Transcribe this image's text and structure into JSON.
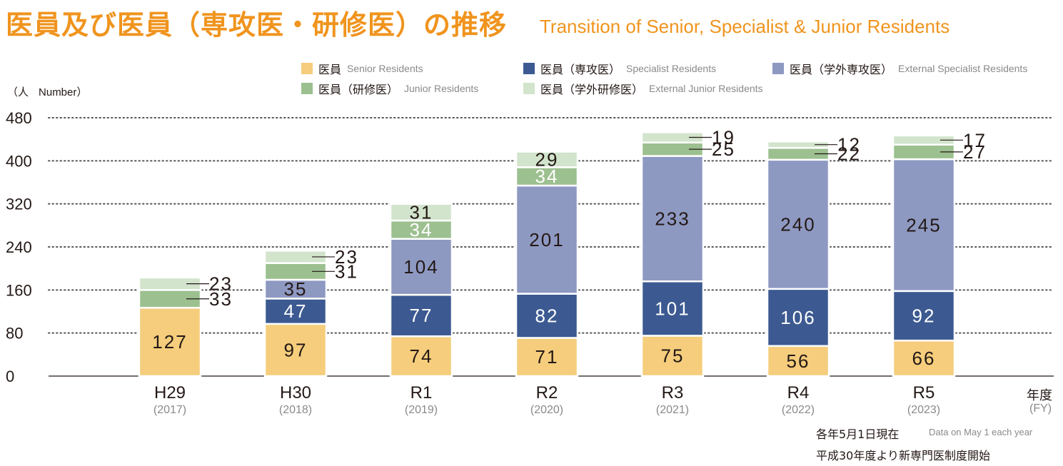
{
  "title": {
    "jp": "医員及び医員（専攻医・研修医）の推移",
    "en": "Transition of Senior, Specialist & Junior Residents"
  },
  "legend": [
    {
      "jp": "医員",
      "en": "Senior Residents",
      "color": "#f5cd7c"
    },
    {
      "jp": "医員（専攻医）",
      "en": "Specialist Residents",
      "color": "#3c5a91"
    },
    {
      "jp": "医員（学外専攻医）",
      "en": "External Specialist Residents",
      "color": "#8e99c2"
    },
    {
      "jp": "医員（研修医）",
      "en": "Junior Residents",
      "color": "#9cc08f"
    },
    {
      "jp": "医員（学外研修医）",
      "en": "External Junior Residents",
      "color": "#d2e4cc"
    }
  ],
  "unit": {
    "jp": "（人",
    "en": "Number）"
  },
  "fy_label": {
    "jp": "年度",
    "en": "(FY)"
  },
  "notes": {
    "line1_jp": "各年5月1日現在",
    "line1_en": "Data on May 1 each year",
    "line2_jp": "平成30年度より新専門医制度開始"
  },
  "chart_data": {
    "type": "bar",
    "stacked": true,
    "categories": [
      "H29",
      "H30",
      "R1",
      "R2",
      "R3",
      "R4",
      "R5"
    ],
    "category_years": [
      "(2017)",
      "(2018)",
      "(2019)",
      "(2020)",
      "(2021)",
      "(2022)",
      "(2023)"
    ],
    "ylim": [
      0,
      480
    ],
    "yticks": [
      0,
      80,
      160,
      240,
      320,
      400,
      480
    ],
    "grid": true,
    "series": [
      {
        "name": "医員",
        "values": [
          127,
          97,
          74,
          71,
          75,
          56,
          66
        ]
      },
      {
        "name": "医員（専攻医）",
        "values": [
          0,
          47,
          77,
          82,
          101,
          106,
          92
        ]
      },
      {
        "name": "医員（学外専攻医）",
        "values": [
          0,
          35,
          104,
          201,
          233,
          240,
          245
        ]
      },
      {
        "name": "医員（研修医）",
        "values": [
          33,
          31,
          34,
          34,
          25,
          22,
          27
        ]
      },
      {
        "name": "医員（学外研修医）",
        "values": [
          23,
          23,
          31,
          29,
          19,
          12,
          17
        ]
      }
    ]
  }
}
